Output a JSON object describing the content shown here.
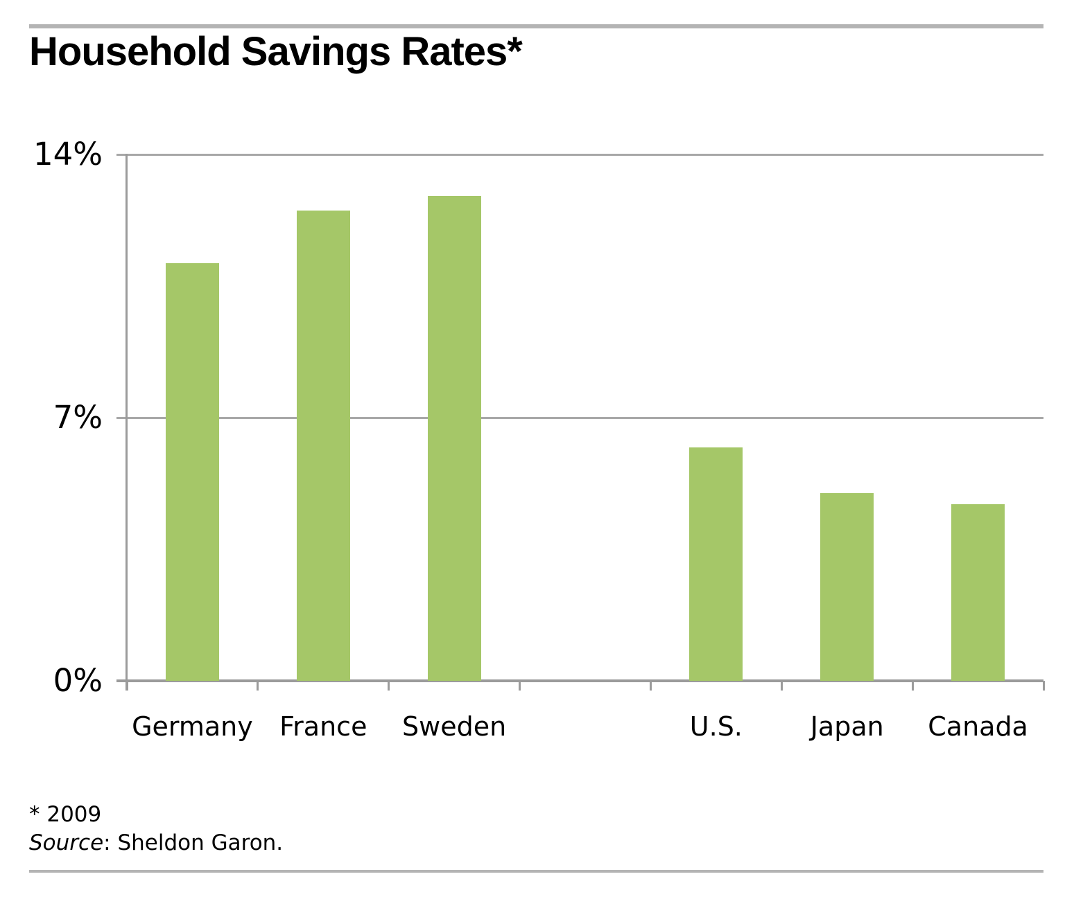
{
  "title": "Household Savings Rates*",
  "footnote": {
    "line1": "* 2009",
    "source_label": "Source",
    "source_rest": ": Sheldon Garon."
  },
  "colors": {
    "bar": "#a5c768",
    "gridline": "#a8a8a8",
    "axis": "#9b9b9b",
    "rule": "#b4b4b4",
    "text": "#000000"
  },
  "chart_data": {
    "type": "bar",
    "title": "Household Savings Rates*",
    "unit": "percent",
    "categories": [
      "Germany",
      "France",
      "Sweden",
      "U.S.",
      "Japan",
      "Canada"
    ],
    "values": [
      11.1,
      12.5,
      12.9,
      6.2,
      5.0,
      4.7
    ],
    "slot_indices": [
      0,
      1,
      2,
      4,
      5,
      6
    ],
    "slots_total": 7,
    "ylim": [
      0,
      14
    ],
    "y_ticks": [
      {
        "value": 14,
        "label": "14%"
      },
      {
        "value": 7,
        "label": "7%"
      },
      {
        "value": 0,
        "label": "0%"
      }
    ],
    "grid": "horizontal-on",
    "legend": "none",
    "xlabel": "",
    "ylabel": "",
    "annotations": [
      "* 2009",
      "Source: Sheldon Garon."
    ]
  }
}
